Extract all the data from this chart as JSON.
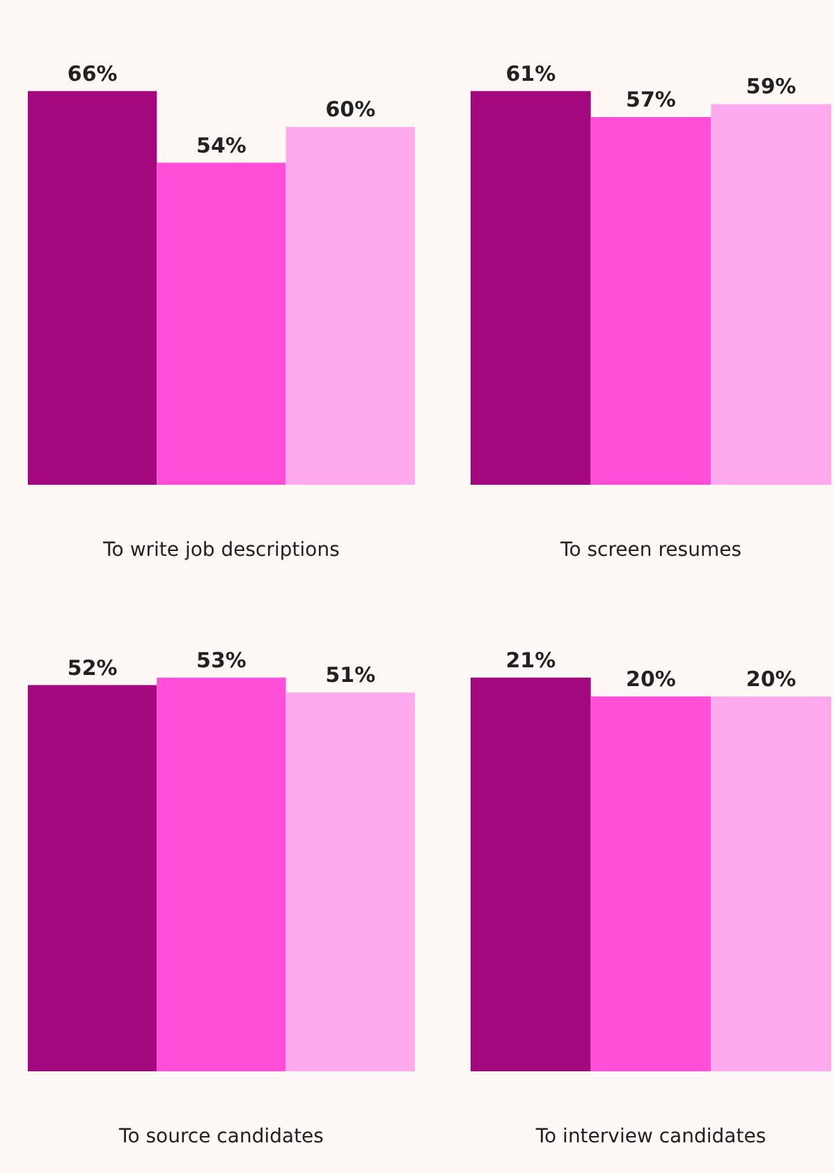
{
  "chart_data": [
    {
      "type": "bar",
      "xlabel": "To write job descriptions",
      "categories": [
        null,
        null,
        null
      ],
      "values": [
        66,
        54,
        60
      ],
      "colors": [
        "#a3087e",
        "#ff4fd8",
        "#ffaaee"
      ],
      "value_labels": [
        "66%",
        "54%",
        "60%"
      ],
      "tick_labels": false
    },
    {
      "type": "bar",
      "xlabel": "To screen resumes",
      "categories": [
        null,
        null,
        null
      ],
      "values": [
        61,
        57,
        59
      ],
      "colors": [
        "#a3087e",
        "#ff4fd8",
        "#ffaaee"
      ],
      "value_labels": [
        "61%",
        "57%",
        "59%"
      ],
      "tick_labels": false
    },
    {
      "type": "bar",
      "xlabel": "To source candidates",
      "categories": [
        null,
        null,
        null
      ],
      "values": [
        52,
        53,
        51
      ],
      "colors": [
        "#a3087e",
        "#ff4fd8",
        "#ffaaee"
      ],
      "value_labels": [
        "52%",
        "53%",
        "51%"
      ],
      "tick_labels": false
    },
    {
      "type": "bar",
      "xlabel": "To interview candidates",
      "categories": [
        null,
        null,
        null
      ],
      "values": [
        21,
        20,
        20
      ],
      "colors": [
        "#a3087e",
        "#ff4fd8",
        "#ffaaee"
      ],
      "value_labels": [
        "21%",
        "20%",
        "20%"
      ],
      "tick_labels": false
    }
  ]
}
